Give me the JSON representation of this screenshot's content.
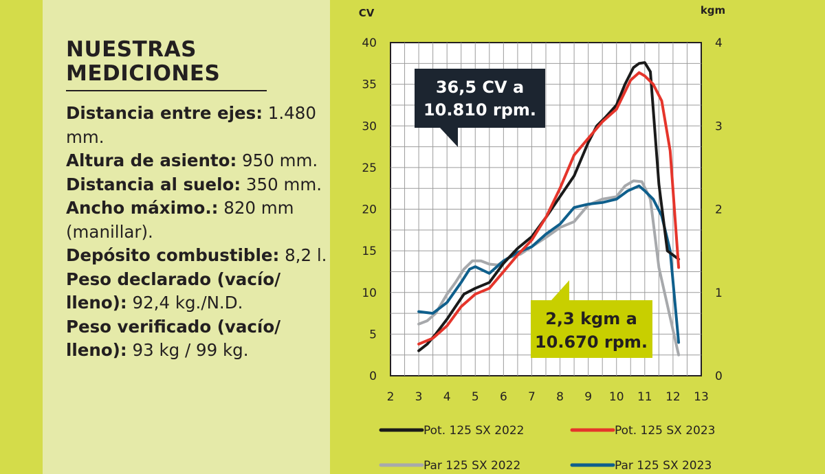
{
  "panel": {
    "title_line1": "NUESTRAS",
    "title_line2": "MEDICIONES",
    "specs": [
      {
        "label": "Distancia entre ejes:",
        "value": " 1.480 mm."
      },
      {
        "label": "Altura de asiento:",
        "value": " 950 mm."
      },
      {
        "label": "Distancia al suelo:",
        "value": " 350 mm."
      },
      {
        "label": "Ancho máximo.:",
        "value": " 820 mm (manillar)."
      },
      {
        "label": "Depósito combustible:",
        "value": " 8,2 l."
      },
      {
        "label": "Peso declarado (vacío/ lleno):",
        "value": "  92,4 kg./N.D."
      },
      {
        "label": "Peso verificado (vacío/ lleno):",
        "value": " 93 kg / 99 kg."
      }
    ]
  },
  "chart_data": {
    "type": "line",
    "y_left_unit": "CV",
    "y_right_unit": "kgm",
    "xlim": [
      2,
      13
    ],
    "ylim_left": [
      0,
      40
    ],
    "ylim_right": [
      0,
      4
    ],
    "x_ticks": [
      2,
      3,
      4,
      5,
      6,
      7,
      8,
      9,
      10,
      11,
      12,
      13
    ],
    "y_left_ticks": [
      0,
      5,
      10,
      15,
      20,
      25,
      30,
      35,
      40
    ],
    "y_right_ticks": [
      0,
      1,
      2,
      3,
      4
    ],
    "grid": true,
    "legend_position": "bottom",
    "series": [
      {
        "name": "Pot. 125 SX 2022",
        "axis": "left",
        "color": "#1a1a1a",
        "x": [
          3,
          3.3,
          3.6,
          4,
          4.3,
          4.6,
          5,
          5.5,
          6,
          6.5,
          7,
          7.5,
          8,
          8.5,
          9,
          9.3,
          9.6,
          10,
          10.3,
          10.6,
          10.8,
          11,
          11.2,
          11.5,
          11.8,
          12.2
        ],
        "y": [
          3,
          3.8,
          5,
          6.8,
          8.3,
          9.8,
          10.5,
          11.2,
          13.5,
          15.3,
          16.7,
          19,
          21.5,
          24,
          28,
          30,
          31,
          32.5,
          35,
          37,
          37.5,
          37.6,
          36.5,
          23,
          15,
          14
        ]
      },
      {
        "name": "Pot. 125 SX 2023",
        "axis": "left",
        "color": "#e5352b",
        "x": [
          3,
          3.5,
          4,
          4.5,
          5,
          5.5,
          6,
          6.5,
          7,
          7.5,
          8,
          8.5,
          9,
          9.5,
          10,
          10.5,
          10.8,
          11,
          11.3,
          11.6,
          11.9,
          12.2
        ],
        "y": [
          3.8,
          4.5,
          6,
          8.3,
          9.8,
          10.5,
          12.5,
          14.5,
          16.3,
          19,
          22.5,
          26.5,
          28.5,
          30.5,
          32,
          35.5,
          36.4,
          36,
          35,
          33,
          27,
          13
        ]
      },
      {
        "name": "Par 125 SX 2022",
        "axis": "right",
        "color": "#a7a9ac",
        "x": [
          3,
          3.3,
          3.6,
          4,
          4.3,
          4.6,
          4.9,
          5.2,
          5.5,
          5.8,
          6.2,
          6.6,
          7,
          7.5,
          8,
          8.5,
          9,
          9.5,
          10,
          10.3,
          10.6,
          10.9,
          11.2,
          11.5,
          11.8,
          12.2
        ],
        "y": [
          0.62,
          0.66,
          0.75,
          0.98,
          1.12,
          1.28,
          1.38,
          1.38,
          1.34,
          1.33,
          1.42,
          1.46,
          1.55,
          1.66,
          1.78,
          1.85,
          2.05,
          2.12,
          2.15,
          2.28,
          2.34,
          2.33,
          2.12,
          1.3,
          0.85,
          0.25
        ]
      },
      {
        "name": "Par 125 SX 2023",
        "axis": "right",
        "color": "#0f5f8c",
        "x": [
          3,
          3.5,
          4,
          4.5,
          4.8,
          5,
          5.5,
          6,
          6.5,
          7,
          7.5,
          8,
          8.5,
          9,
          9.5,
          10,
          10.4,
          10.8,
          11,
          11.3,
          11.6,
          11.9,
          12.2
        ],
        "y": [
          0.77,
          0.75,
          0.88,
          1.12,
          1.28,
          1.31,
          1.23,
          1.38,
          1.48,
          1.55,
          1.7,
          1.82,
          2.02,
          2.06,
          2.08,
          2.12,
          2.22,
          2.28,
          2.22,
          2.12,
          1.92,
          1.5,
          0.4
        ]
      }
    ],
    "callouts": [
      {
        "text_line1": "36,5 CV a",
        "text_line2": "10.810 rpm.",
        "background": "#1c2530",
        "color": "#ffffff"
      },
      {
        "text_line1": "2,3 kgm a",
        "text_line2": "10.670 rpm.",
        "background": "#c8cf00",
        "color": "#231f20"
      }
    ]
  }
}
